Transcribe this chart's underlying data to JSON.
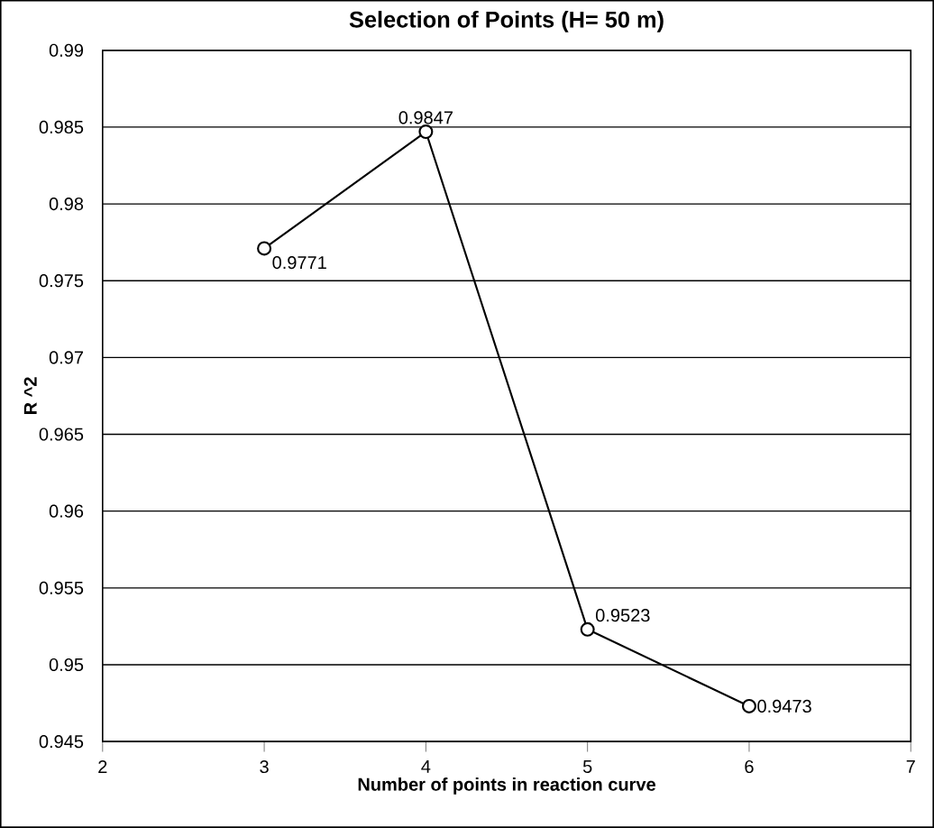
{
  "chart_data": {
    "type": "line",
    "title": "Selection of Points (H= 50 m)",
    "xlabel": "Number of points in reaction curve",
    "ylabel": "R ^2",
    "x": [
      3,
      4,
      5,
      6
    ],
    "series": [
      {
        "color": "#000000",
        "values": [
          0.9771,
          0.9847,
          0.9523,
          0.9473
        ]
      }
    ],
    "xlim": [
      2,
      7
    ],
    "xticks": [
      2,
      3,
      4,
      5,
      6,
      7
    ],
    "ylim": [
      0.945,
      0.99
    ],
    "yticks": [
      0.945,
      0.95,
      0.955,
      0.96,
      0.965,
      0.97,
      0.975,
      0.98,
      0.985,
      0.99
    ],
    "grid": "y",
    "marker": "circle",
    "line_style": "solid",
    "data_labels": true
  }
}
